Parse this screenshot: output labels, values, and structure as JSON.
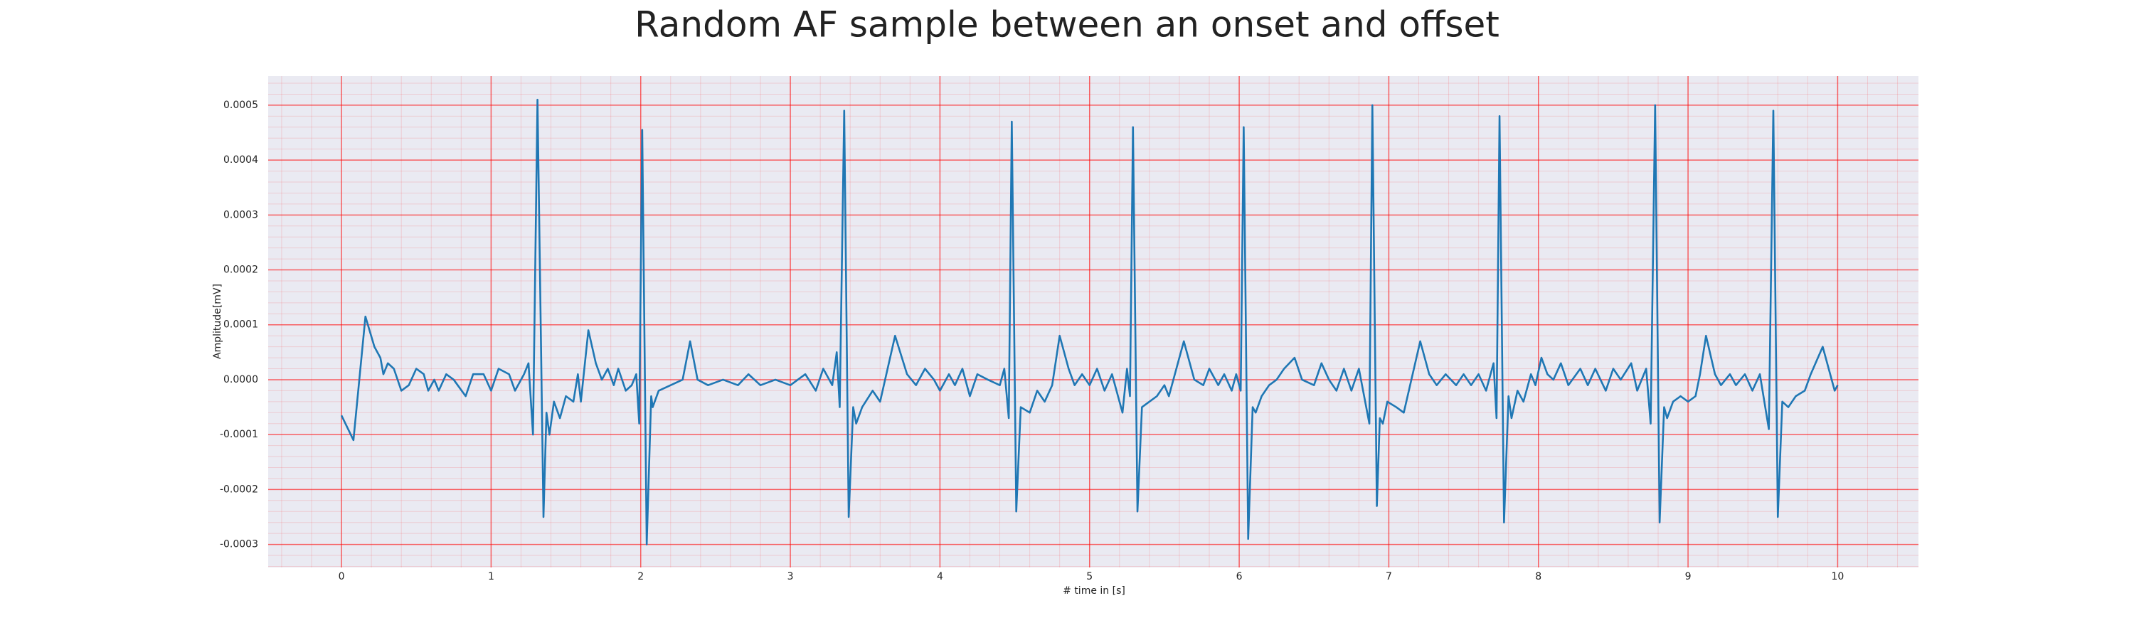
{
  "chart_data": {
    "type": "line",
    "title": "Random AF sample between an onset and offset",
    "x_label": "# time in [s]",
    "y_label": "Amplitude[mV]",
    "x": [
      0,
      0.08,
      0.16,
      0.22,
      0.26,
      0.28,
      0.31,
      0.35,
      0.4,
      0.45,
      0.5,
      0.55,
      0.58,
      0.62,
      0.65,
      0.7,
      0.75,
      0.83,
      0.88,
      0.95,
      1.0,
      1.05,
      1.12,
      1.16,
      1.22,
      1.25,
      1.28,
      1.31,
      1.35,
      1.37,
      1.39,
      1.42,
      1.46,
      1.5,
      1.55,
      1.58,
      1.6,
      1.65,
      1.7,
      1.74,
      1.78,
      1.82,
      1.85,
      1.9,
      1.94,
      1.97,
      1.99,
      2.01,
      2.04,
      2.07,
      2.08,
      2.12,
      2.2,
      2.28,
      2.33,
      2.38,
      2.45,
      2.55,
      2.65,
      2.72,
      2.8,
      2.9,
      3.0,
      3.1,
      3.17,
      3.22,
      3.28,
      3.31,
      3.33,
      3.36,
      3.39,
      3.42,
      3.44,
      3.48,
      3.55,
      3.6,
      3.7,
      3.78,
      3.84,
      3.9,
      3.96,
      4.0,
      4.06,
      4.1,
      4.15,
      4.2,
      4.25,
      4.32,
      4.4,
      4.43,
      4.46,
      4.48,
      4.51,
      4.54,
      4.6,
      4.65,
      4.7,
      4.75,
      4.8,
      4.86,
      4.9,
      4.95,
      5.0,
      5.05,
      5.1,
      5.15,
      5.22,
      5.25,
      5.27,
      5.29,
      5.32,
      5.35,
      5.4,
      5.45,
      5.5,
      5.53,
      5.63,
      5.7,
      5.76,
      5.8,
      5.86,
      5.9,
      5.95,
      5.98,
      6.01,
      6.03,
      6.06,
      6.09,
      6.11,
      6.15,
      6.2,
      6.25,
      6.3,
      6.37,
      6.42,
      6.5,
      6.55,
      6.6,
      6.65,
      6.7,
      6.75,
      6.8,
      6.87,
      6.89,
      6.92,
      6.94,
      6.96,
      6.99,
      7.05,
      7.1,
      7.21,
      7.27,
      7.32,
      7.38,
      7.45,
      7.5,
      7.55,
      7.6,
      7.65,
      7.7,
      7.72,
      7.74,
      7.77,
      7.8,
      7.82,
      7.86,
      7.9,
      7.95,
      7.98,
      8.02,
      8.06,
      8.1,
      8.15,
      8.2,
      8.28,
      8.33,
      8.38,
      8.45,
      8.5,
      8.55,
      8.62,
      8.66,
      8.72,
      8.75,
      8.78,
      8.81,
      8.84,
      8.86,
      8.9,
      8.95,
      9.0,
      9.05,
      9.08,
      9.12,
      9.18,
      9.22,
      9.28,
      9.32,
      9.38,
      9.43,
      9.48,
      9.54,
      9.57,
      9.6,
      9.63,
      9.67,
      9.72,
      9.78,
      9.82,
      9.9,
      9.95,
      9.98,
      10.0
    ],
    "series": [
      {
        "color": "#1f77b4",
        "values": [
          -6.5e-05,
          -0.00011,
          0.000115,
          6e-05,
          4e-05,
          1e-05,
          3e-05,
          2e-05,
          -2e-05,
          -1e-05,
          2e-05,
          1e-05,
          -2e-05,
          0,
          -2e-05,
          1e-05,
          0,
          -3e-05,
          1e-05,
          1e-05,
          -2e-05,
          2e-05,
          1e-05,
          -2e-05,
          1e-05,
          3e-05,
          -0.0001,
          0.00051,
          -0.00025,
          -6e-05,
          -0.0001,
          -4e-05,
          -7e-05,
          -3e-05,
          -4e-05,
          1e-05,
          -4e-05,
          9e-05,
          3e-05,
          0,
          2e-05,
          -1e-05,
          2e-05,
          -2e-05,
          -1e-05,
          1e-05,
          -8e-05,
          0.000455,
          -0.0003,
          -3e-05,
          -5e-05,
          -2e-05,
          -1e-05,
          0,
          7e-05,
          0,
          -1e-05,
          0,
          -1e-05,
          1e-05,
          -1e-05,
          0,
          -1e-05,
          1e-05,
          -2e-05,
          2e-05,
          -1e-05,
          5e-05,
          -5e-05,
          0.00049,
          -0.00025,
          -5e-05,
          -8e-05,
          -5e-05,
          -2e-05,
          -4e-05,
          8e-05,
          1e-05,
          -1e-05,
          2e-05,
          0,
          -2e-05,
          1e-05,
          -1e-05,
          2e-05,
          -3e-05,
          1e-05,
          0,
          -1e-05,
          2e-05,
          -7e-05,
          0.00047,
          -0.00024,
          -5e-05,
          -6e-05,
          -2e-05,
          -4e-05,
          -1e-05,
          8e-05,
          2e-05,
          -1e-05,
          1e-05,
          -1e-05,
          2e-05,
          -2e-05,
          1e-05,
          -6e-05,
          2e-05,
          -3e-05,
          0.00046,
          -0.00024,
          -5e-05,
          -4e-05,
          -3e-05,
          -1e-05,
          -3e-05,
          7e-05,
          0,
          -1e-05,
          2e-05,
          -1e-05,
          1e-05,
          -2e-05,
          1e-05,
          -2e-05,
          0.00046,
          -0.00029,
          -5e-05,
          -6e-05,
          -3e-05,
          -1e-05,
          0,
          2e-05,
          4e-05,
          0,
          -1e-05,
          3e-05,
          0,
          -2e-05,
          2e-05,
          -2e-05,
          2e-05,
          -8e-05,
          0.0005,
          -0.00023,
          -7e-05,
          -8e-05,
          -4e-05,
          -5e-05,
          -6e-05,
          7e-05,
          1e-05,
          -1e-05,
          1e-05,
          -1e-05,
          1e-05,
          -1e-05,
          1e-05,
          -2e-05,
          3e-05,
          -7e-05,
          0.00048,
          -0.00026,
          -3e-05,
          -7e-05,
          -2e-05,
          -4e-05,
          1e-05,
          -1e-05,
          4e-05,
          1e-05,
          0,
          3e-05,
          -1e-05,
          2e-05,
          -1e-05,
          2e-05,
          -2e-05,
          2e-05,
          0,
          3e-05,
          -2e-05,
          2e-05,
          -8e-05,
          0.0005,
          -0.00026,
          -5e-05,
          -7e-05,
          -4e-05,
          -3e-05,
          -4e-05,
          -3e-05,
          1e-05,
          8e-05,
          1e-05,
          -1e-05,
          1e-05,
          -1e-05,
          1e-05,
          -2e-05,
          1e-05,
          -9e-05,
          0.00049,
          -0.00025,
          -4e-05,
          -5e-05,
          -3e-05,
          -2e-05,
          1e-05,
          6e-05,
          1e-05,
          -2e-05,
          -1e-05
        ]
      }
    ],
    "xlim": [
      -0.49,
      10.54
    ],
    "ylim": [
      -0.000342,
      0.000553
    ],
    "xticks": [
      0,
      1,
      2,
      3,
      4,
      5,
      6,
      7,
      8,
      9,
      10
    ],
    "yticks": [
      {
        "value": -0.0003,
        "label": "-0.0003"
      },
      {
        "value": -0.0002,
        "label": "-0.0002"
      },
      {
        "value": -0.0001,
        "label": "-0.0001"
      },
      {
        "value": 0,
        "label": "0.0000"
      },
      {
        "value": 0.0001,
        "label": "0.0001"
      },
      {
        "value": 0.0002,
        "label": "0.0002"
      },
      {
        "value": 0.0003,
        "label": "0.0003"
      },
      {
        "value": 0.0004,
        "label": "0.0004"
      },
      {
        "value": 0.0005,
        "label": "0.0005"
      }
    ],
    "grid": true,
    "minor_grid": true
  }
}
